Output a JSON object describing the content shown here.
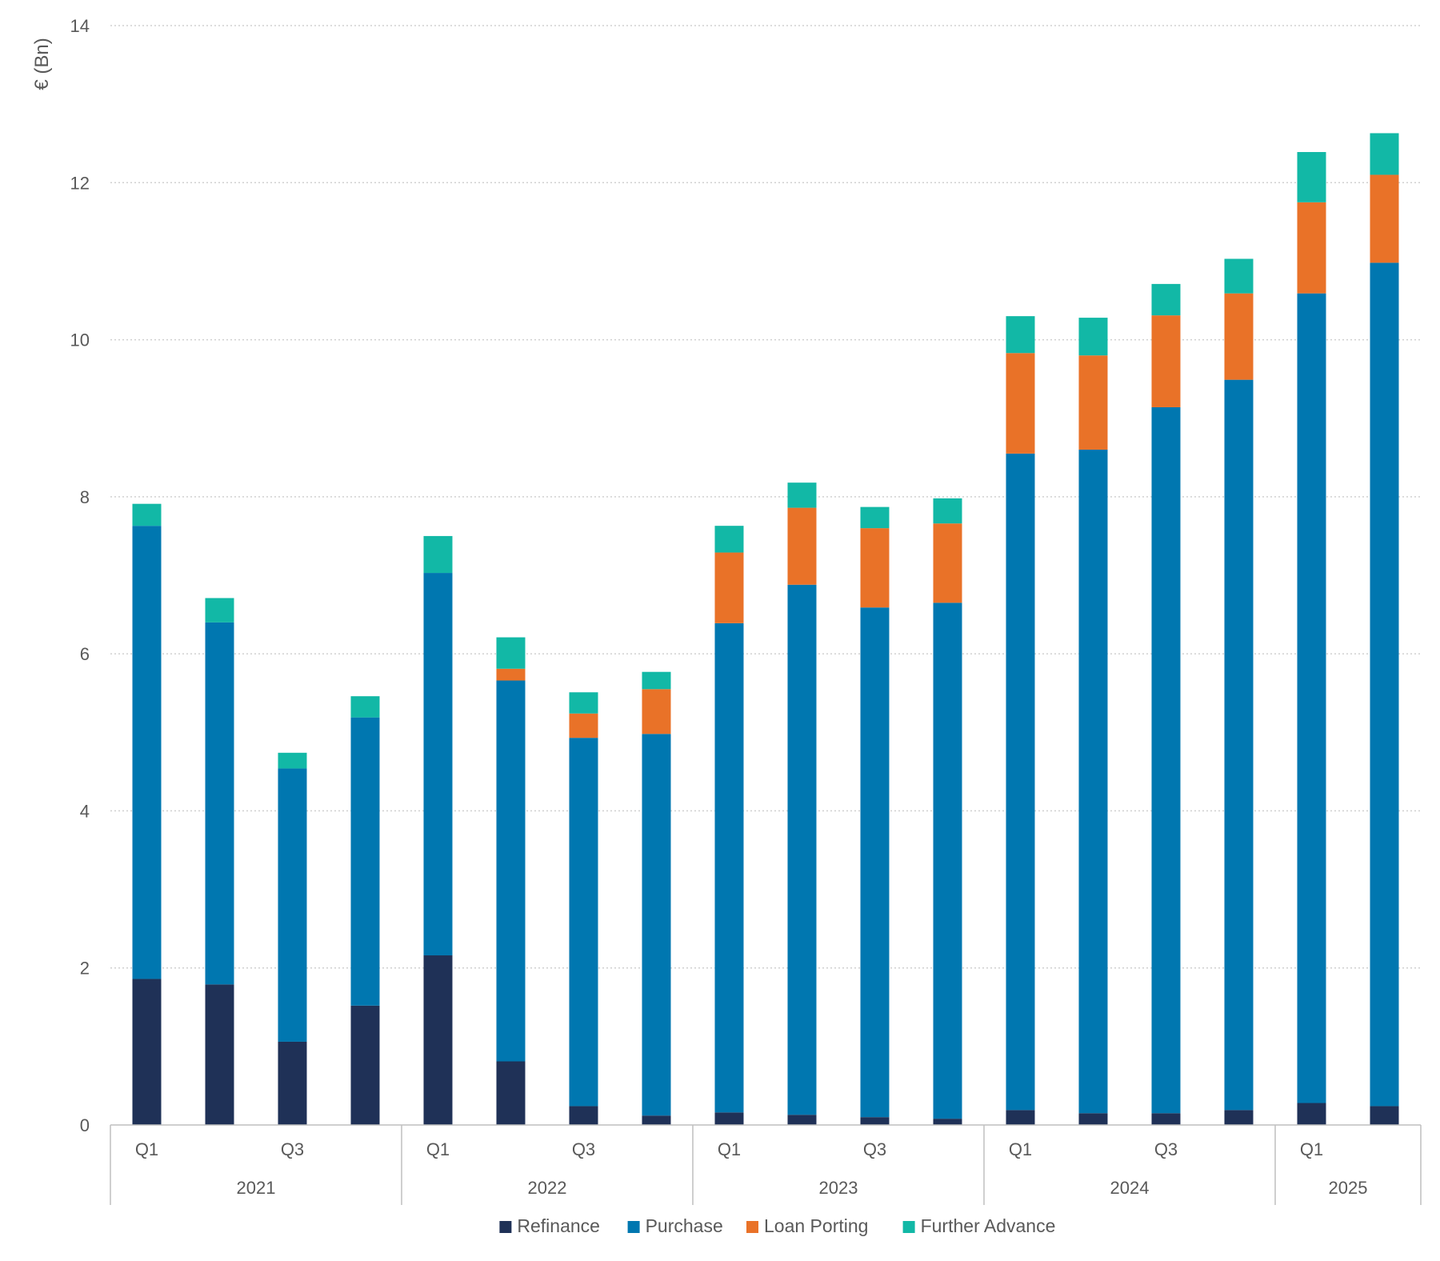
{
  "chart_data": {
    "type": "bar",
    "stacked": true,
    "ylabel": "€ (Bn)",
    "ylim": [
      0,
      14
    ],
    "yticks": [
      0,
      2,
      4,
      6,
      8,
      10,
      12,
      14
    ],
    "grid": true,
    "legend_position": "bottom",
    "categories": [
      "2021 Q1",
      "2021 Q2",
      "2021 Q3",
      "2021 Q4",
      "2022 Q1",
      "2022 Q2",
      "2022 Q3",
      "2022 Q4",
      "2023 Q1",
      "2023 Q2",
      "2023 Q3",
      "2023 Q4",
      "2024 Q1",
      "2024 Q2",
      "2024 Q3",
      "2024 Q4",
      "2025 Q1",
      "2025 Q2"
    ],
    "quarter_labels": [
      "Q1",
      "",
      "Q3",
      "",
      "Q1",
      "",
      "Q3",
      "",
      "Q1",
      "",
      "Q3",
      "",
      "Q1",
      "",
      "Q3",
      "",
      "Q1",
      ""
    ],
    "year_groups": [
      {
        "label": "2021",
        "start": 0,
        "count": 4
      },
      {
        "label": "2022",
        "start": 4,
        "count": 4
      },
      {
        "label": "2023",
        "start": 8,
        "count": 4
      },
      {
        "label": "2024",
        "start": 12,
        "count": 4
      },
      {
        "label": "2025",
        "start": 16,
        "count": 2
      }
    ],
    "series": [
      {
        "name": "Refinance",
        "color": "#1f3157",
        "values": [
          1.86,
          1.79,
          1.06,
          1.52,
          2.16,
          0.81,
          0.24,
          0.12,
          0.16,
          0.13,
          0.1,
          0.08,
          0.19,
          0.15,
          0.15,
          0.19,
          0.28,
          0.24
        ]
      },
      {
        "name": "Purchase",
        "color": "#0077b0",
        "values": [
          5.77,
          4.61,
          3.48,
          3.67,
          4.87,
          4.85,
          4.69,
          4.86,
          6.23,
          6.75,
          6.49,
          6.57,
          8.36,
          8.45,
          8.99,
          9.3,
          10.31,
          10.74
        ]
      },
      {
        "name": "Loan Porting",
        "color": "#e97228",
        "values": [
          0.0,
          0.0,
          0.0,
          0.0,
          0.0,
          0.15,
          0.31,
          0.57,
          0.9,
          0.98,
          1.01,
          1.01,
          1.28,
          1.2,
          1.17,
          1.1,
          1.16,
          1.12
        ]
      },
      {
        "name": "Further Advance",
        "color": "#12b8a6",
        "values": [
          0.28,
          0.31,
          0.2,
          0.27,
          0.47,
          0.4,
          0.27,
          0.22,
          0.34,
          0.32,
          0.27,
          0.32,
          0.47,
          0.48,
          0.4,
          0.44,
          0.64,
          0.53
        ]
      }
    ]
  }
}
